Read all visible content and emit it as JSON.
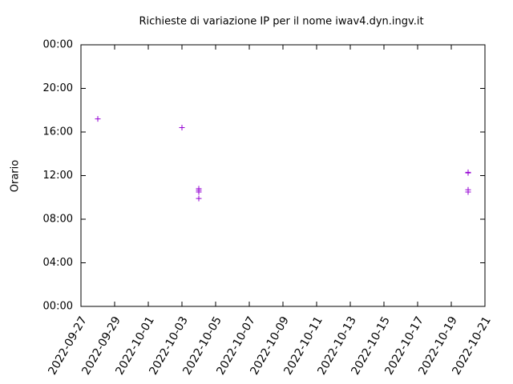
{
  "chart_data": {
    "type": "scatter",
    "title": "Richieste di variazione IP per il nome iwav4.dyn.ingv.it",
    "y_label": "Orario",
    "marker": "+",
    "series": [
      {
        "color": "#9400d3",
        "x": [
          "2022-09-28",
          "2022-10-03",
          "2022-10-04",
          "2022-10-04",
          "2022-10-04",
          "2022-10-04",
          "2022-10-20",
          "2022-10-20",
          "2022-10-20",
          "2022-10-20"
        ],
        "values": [
          17.2,
          16.4,
          10.8,
          10.65,
          10.5,
          9.9,
          12.3,
          12.25,
          10.7,
          10.5
        ]
      }
    ],
    "xlim": [
      "2022-09-27",
      "2022-10-21"
    ],
    "xticks": [
      "2022-09-27",
      "2022-09-29",
      "2022-10-01",
      "2022-10-03",
      "2022-10-05",
      "2022-10-07",
      "2022-10-09",
      "2022-10-11",
      "2022-10-13",
      "2022-10-15",
      "2022-10-17",
      "2022-10-19",
      "2022-10-21"
    ],
    "ylim": [
      0,
      24
    ],
    "yticks": [
      {
        "value": 0,
        "label": "00:00"
      },
      {
        "value": 4,
        "label": "04:00"
      },
      {
        "value": 8,
        "label": "08:00"
      },
      {
        "value": 12,
        "label": "12:00"
      },
      {
        "value": 16,
        "label": "16:00"
      },
      {
        "value": 20,
        "label": "20:00"
      },
      {
        "value": 24,
        "label": "00:00"
      }
    ]
  }
}
